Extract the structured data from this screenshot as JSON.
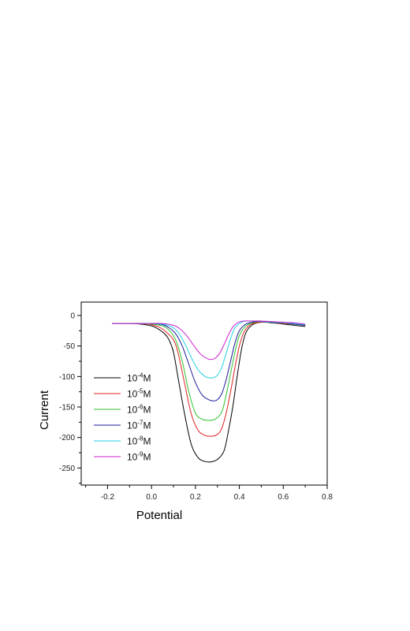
{
  "chart_data": {
    "type": "line",
    "title": "",
    "xlabel": "Potential",
    "ylabel": "Current",
    "xlim": [
      -0.32,
      0.8
    ],
    "ylim": [
      -278,
      22
    ],
    "xticks": [
      -0.2,
      0.0,
      0.2,
      0.4,
      0.6,
      0.8
    ],
    "xtick_labels": [
      "-0.2",
      "0.0",
      "0.2",
      "0.4",
      "0.6",
      "0.8"
    ],
    "yticks": [
      0,
      -50,
      -100,
      -150,
      -200,
      -250
    ],
    "ytick_labels": [
      "0",
      "-50",
      "-100",
      "-150",
      "-200",
      "-250"
    ],
    "grid": false,
    "legend_position": "lower-left",
    "series": [
      {
        "name": "10-4M",
        "name_base": "10",
        "name_exp": "-4",
        "name_unit": "M",
        "color": "#000000",
        "x": [
          -0.18,
          -0.1,
          -0.05,
          0.0,
          0.03,
          0.06,
          0.08,
          0.1,
          0.12,
          0.15,
          0.18,
          0.21,
          0.24,
          0.27,
          0.3,
          0.33,
          0.35,
          0.37,
          0.39,
          0.41,
          0.43,
          0.46,
          0.5,
          0.55,
          0.6,
          0.65,
          0.7
        ],
        "y": [
          -13,
          -13,
          -14,
          -17,
          -22,
          -30,
          -40,
          -60,
          -100,
          -160,
          -210,
          -232,
          -239,
          -240,
          -236,
          -222,
          -190,
          -150,
          -100,
          -55,
          -28,
          -15,
          -11,
          -12,
          -14,
          -16,
          -18
        ]
      },
      {
        "name": "10-5M",
        "name_base": "10",
        "name_exp": "-5",
        "name_unit": "M",
        "color": "#e02020",
        "x": [
          -0.18,
          -0.1,
          -0.05,
          0.0,
          0.04,
          0.07,
          0.1,
          0.12,
          0.15,
          0.18,
          0.21,
          0.24,
          0.27,
          0.3,
          0.32,
          0.34,
          0.36,
          0.38,
          0.4,
          0.42,
          0.45,
          0.5,
          0.55,
          0.6,
          0.65,
          0.7
        ],
        "y": [
          -13,
          -13,
          -13,
          -15,
          -20,
          -28,
          -40,
          -60,
          -110,
          -160,
          -187,
          -196,
          -198,
          -195,
          -185,
          -160,
          -125,
          -85,
          -50,
          -28,
          -15,
          -11,
          -11,
          -13,
          -14,
          -16
        ]
      },
      {
        "name": "10-6M",
        "name_base": "10",
        "name_exp": "-6",
        "name_unit": "M",
        "color": "#2ec22e",
        "x": [
          -0.18,
          -0.1,
          -0.05,
          0.0,
          0.05,
          0.08,
          0.11,
          0.14,
          0.17,
          0.2,
          0.23,
          0.26,
          0.29,
          0.32,
          0.34,
          0.36,
          0.38,
          0.4,
          0.43,
          0.47,
          0.5,
          0.55,
          0.6,
          0.65,
          0.7
        ],
        "y": [
          -13,
          -13,
          -13,
          -14,
          -17,
          -24,
          -40,
          -75,
          -125,
          -160,
          -170,
          -172,
          -170,
          -158,
          -130,
          -95,
          -60,
          -33,
          -17,
          -11,
          -10,
          -11,
          -12,
          -14,
          -16
        ]
      },
      {
        "name": "10-7M",
        "name_base": "10",
        "name_exp": "-7",
        "name_unit": "M",
        "color": "#1a1a99",
        "x": [
          -0.18,
          -0.1,
          -0.05,
          0.0,
          0.05,
          0.08,
          0.11,
          0.14,
          0.17,
          0.2,
          0.23,
          0.26,
          0.28,
          0.3,
          0.32,
          0.34,
          0.36,
          0.38,
          0.4,
          0.43,
          0.47,
          0.5,
          0.55,
          0.6,
          0.65,
          0.7
        ],
        "y": [
          -13,
          -13,
          -13,
          -13,
          -15,
          -20,
          -30,
          -50,
          -80,
          -110,
          -130,
          -138,
          -140,
          -138,
          -128,
          -105,
          -75,
          -45,
          -25,
          -14,
          -10,
          -10,
          -11,
          -12,
          -14,
          -16
        ]
      },
      {
        "name": "10-8M",
        "name_base": "10",
        "name_exp": "-8",
        "name_unit": "M",
        "color": "#22d0e6",
        "x": [
          -0.18,
          -0.1,
          -0.05,
          0.0,
          0.05,
          0.09,
          0.12,
          0.15,
          0.18,
          0.21,
          0.24,
          0.26,
          0.28,
          0.3,
          0.32,
          0.34,
          0.36,
          0.38,
          0.41,
          0.44,
          0.48,
          0.52,
          0.56,
          0.6,
          0.65,
          0.7
        ],
        "y": [
          -13,
          -13,
          -13,
          -13,
          -14,
          -18,
          -27,
          -45,
          -68,
          -88,
          -99,
          -102,
          -102,
          -98,
          -85,
          -62,
          -38,
          -20,
          -11,
          -9,
          -9,
          -10,
          -11,
          -12,
          -13,
          -15
        ]
      },
      {
        "name": "10-9M",
        "name_base": "10",
        "name_exp": "-9",
        "name_unit": "M",
        "color": "#d020d0",
        "x": [
          -0.18,
          -0.1,
          -0.05,
          0.0,
          0.05,
          0.1,
          0.13,
          0.16,
          0.19,
          0.22,
          0.25,
          0.27,
          0.29,
          0.31,
          0.33,
          0.35,
          0.37,
          0.39,
          0.42,
          0.46,
          0.5,
          0.55,
          0.6,
          0.65,
          0.7
        ],
        "y": [
          -13,
          -13,
          -13,
          -13,
          -13,
          -16,
          -22,
          -33,
          -48,
          -62,
          -70,
          -72,
          -70,
          -62,
          -48,
          -32,
          -19,
          -12,
          -9,
          -9,
          -9,
          -10,
          -11,
          -12,
          -14
        ]
      }
    ]
  }
}
